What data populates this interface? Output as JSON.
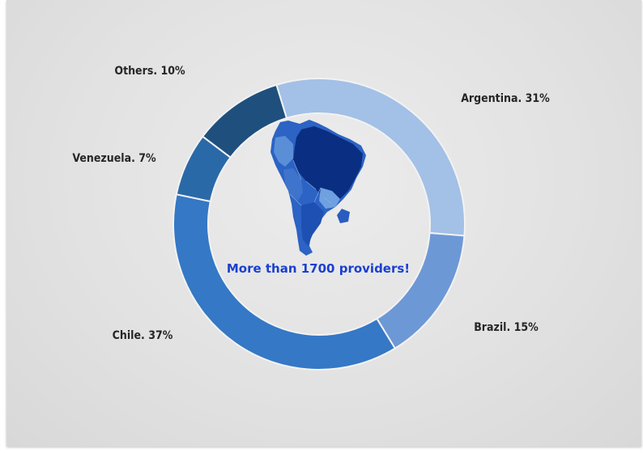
{
  "chart_data": {
    "type": "pie",
    "donut": true,
    "slices": [
      {
        "label": "Argentina. 31%",
        "value": 31,
        "color": "#a3c0e6"
      },
      {
        "label": "Brazil. 15%",
        "value": 15,
        "color": "#6d98d6"
      },
      {
        "label": "Chile. 37%",
        "value": 37,
        "color": "#3478c6"
      },
      {
        "label": "Venezuela. 7%",
        "value": 7,
        "color": "#2a69a8"
      },
      {
        "label": "Others. 10%",
        "value": 10,
        "color": "#1f4f7d"
      }
    ],
    "center_text": "More than 1700 providers!",
    "center_icon": "south-america-map-icon",
    "legend": "none"
  }
}
